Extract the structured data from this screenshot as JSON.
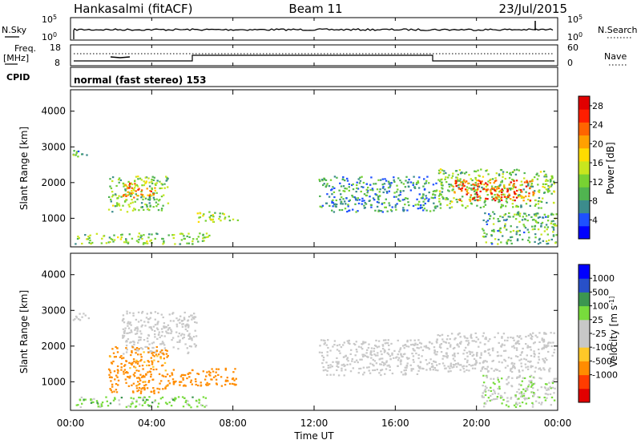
{
  "header": {
    "station": "Hankasalmi (fitACF)",
    "beam": "Beam 11",
    "date": "23/Jul/2015"
  },
  "noise_panel": {
    "left_label": "N.Sky",
    "right_label": "N.Search",
    "left_ticks": [
      "10^5",
      "10^0"
    ],
    "right_ticks": [
      "10^5",
      "10^0"
    ]
  },
  "freq_panel": {
    "left_label_line1": "Freq.",
    "left_label_line2": "[MHz]",
    "right_label": "Nave",
    "left_ticks": [
      "18",
      "8"
    ],
    "right_ticks": [
      "60",
      "0"
    ]
  },
  "cpid": {
    "label": "CPID",
    "mode": "normal (fast stereo) 153"
  },
  "colors": {
    "power_scale": [
      "#0000ff",
      "#1e50ff",
      "#3c8c8c",
      "#50b450",
      "#78d232",
      "#c8e61e",
      "#ffdc00",
      "#ffa000",
      "#ff6400",
      "#ff1e00",
      "#e10000"
    ],
    "velocity_scale": [
      "#e10000",
      "#ff3c00",
      "#ff8c00",
      "#ffc828",
      "#c8c8c8",
      "#c8c8c8",
      "#78dc3c",
      "#3c9650",
      "#2850c8",
      "#0000ff"
    ]
  },
  "chart_data": [
    {
      "type": "heatmap",
      "name": "power",
      "ylabel": "Slant Range [km]",
      "ylim": [
        200,
        4600
      ],
      "xlim": [
        0,
        24
      ],
      "yticks": [
        "1000",
        "2000",
        "3000",
        "4000"
      ],
      "colorbar": {
        "label": "Power [dB]",
        "ticks": [
          "4",
          "8",
          "12",
          "16",
          "20",
          "24",
          "28"
        ],
        "range": [
          0,
          30
        ]
      },
      "regions": [
        {
          "x0": 0.1,
          "x1": 0.9,
          "y0": 2700,
          "y1": 2950,
          "value": 10
        },
        {
          "x0": 0.2,
          "x1": 6.8,
          "y0": 300,
          "y1": 600,
          "value": 12
        },
        {
          "x0": 1.8,
          "x1": 4.8,
          "y0": 1200,
          "y1": 2200,
          "value": 12
        },
        {
          "x0": 2.5,
          "x1": 4.2,
          "y0": 1600,
          "y1": 2000,
          "value": 22
        },
        {
          "x0": 6.2,
          "x1": 8.2,
          "y0": 900,
          "y1": 1200,
          "value": 14
        },
        {
          "x0": 12.2,
          "x1": 18.0,
          "y0": 1200,
          "y1": 2200,
          "value": 8
        },
        {
          "x0": 18.0,
          "x1": 23.8,
          "y0": 1300,
          "y1": 2400,
          "value": 12
        },
        {
          "x0": 18.8,
          "x1": 22.8,
          "y0": 1500,
          "y1": 2100,
          "value": 24
        },
        {
          "x0": 20.2,
          "x1": 23.9,
          "y0": 300,
          "y1": 1200,
          "value": 10
        }
      ]
    },
    {
      "type": "heatmap",
      "name": "velocity",
      "ylabel": "Slant Range [km]",
      "xlabel": "Time UT",
      "ylim": [
        200,
        4600
      ],
      "xlim": [
        0,
        24
      ],
      "xticks": [
        "00:00",
        "04:00",
        "08:00",
        "12:00",
        "16:00",
        "20:00",
        "00:00"
      ],
      "yticks": [
        "1000",
        "2000",
        "3000",
        "4000"
      ],
      "colorbar": {
        "label": "Velocity [m s^-1]",
        "ticks": [
          "1000",
          "500",
          "100",
          "25",
          "-25",
          "-100",
          "-500",
          "-1000"
        ]
      },
      "regions": [
        {
          "x0": 0.1,
          "x1": 0.9,
          "y0": 2700,
          "y1": 2950,
          "value": 0
        },
        {
          "x0": 0.2,
          "x1": 6.8,
          "y0": 300,
          "y1": 600,
          "value": 60
        },
        {
          "x0": 2.5,
          "x1": 6.2,
          "y0": 1800,
          "y1": 3000,
          "value": 0
        },
        {
          "x0": 1.8,
          "x1": 4.8,
          "y0": 700,
          "y1": 2000,
          "value": -150
        },
        {
          "x0": 4.8,
          "x1": 8.2,
          "y0": 900,
          "y1": 1400,
          "value": -300
        },
        {
          "x0": 12.2,
          "x1": 18.0,
          "y0": 1200,
          "y1": 2200,
          "value": 0
        },
        {
          "x0": 18.0,
          "x1": 23.8,
          "y0": 1300,
          "y1": 2400,
          "value": 0
        },
        {
          "x0": 20.2,
          "x1": 23.9,
          "y0": 300,
          "y1": 1200,
          "value": 20
        }
      ]
    }
  ]
}
